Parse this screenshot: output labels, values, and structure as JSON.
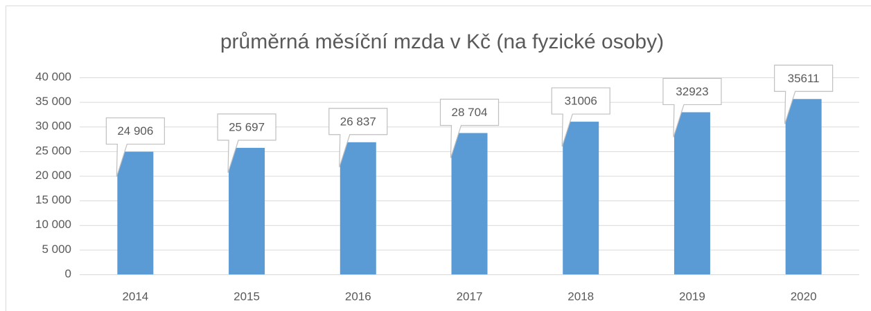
{
  "chart_data": {
    "type": "bar",
    "title": "průměrná měsíční mzda v Kč (na fyzické osoby)",
    "categories": [
      "2014",
      "2015",
      "2016",
      "2017",
      "2018",
      "2019",
      "2020"
    ],
    "values": [
      24906,
      25697,
      26837,
      28704,
      31006,
      32923,
      35611
    ],
    "value_labels": [
      "24 906",
      "25 697",
      "26 837",
      "28 704",
      "31006",
      "32923",
      "35611"
    ],
    "color": "#5b9bd5",
    "ylim": [
      0,
      40000
    ],
    "yticks": [
      0,
      {
        "value": 5000,
        "label": "5 000"
      },
      {
        "value": 10000,
        "label": "10 000"
      },
      {
        "value": 15000,
        "label": "15 000"
      },
      {
        "value": 20000,
        "label": "20 000"
      },
      {
        "value": 25000,
        "label": "25 000"
      },
      {
        "value": 30000,
        "label": "30 000"
      },
      {
        "value": 35000,
        "label": "35 000"
      },
      {
        "value": 40000,
        "label": "40 000"
      }
    ],
    "grid": true
  }
}
